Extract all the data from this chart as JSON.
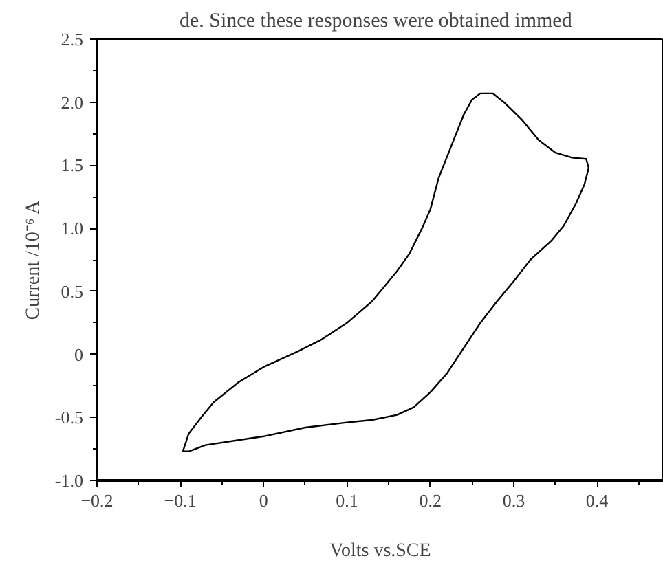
{
  "chart_data": {
    "type": "line",
    "xlabel": "Volts vs.SCE",
    "ylabel": "Current /10⁻⁶ A",
    "annotations": [
      "de. Since these responses were obtained immed"
    ],
    "xlim": [
      -0.2,
      0.48
    ],
    "ylim": [
      -1.0,
      2.5
    ],
    "xticks": [
      -0.2,
      -0.1,
      0,
      0.1,
      0.2,
      0.3,
      0.4
    ],
    "yticks": [
      {
        "value": -1.0,
        "label": "-1.0"
      },
      {
        "value": -0.5,
        "label": "-0.5"
      },
      0,
      {
        "value": 0.5,
        "label": "0.5"
      },
      {
        "value": 1.0,
        "label": "1.0"
      },
      {
        "value": 1.5,
        "label": "1.5"
      },
      {
        "value": 2.0,
        "label": "2.0"
      },
      {
        "value": 2.5,
        "label": "2.5"
      }
    ],
    "grid": false,
    "marker": "none",
    "line_style": "solid",
    "series": [
      {
        "color": "#000000",
        "x": [
          -0.097,
          -0.09,
          -0.07,
          -0.03,
          0,
          0.05,
          0.1,
          0.13,
          0.16,
          0.18,
          0.2,
          0.22,
          0.24,
          0.26,
          0.28,
          0.3,
          0.32,
          0.345,
          0.36,
          0.375,
          0.385,
          0.39
        ],
        "values": [
          -0.77,
          -0.77,
          -0.72,
          -0.68,
          -0.65,
          -0.58,
          -0.54,
          -0.52,
          -0.48,
          -0.42,
          -0.3,
          -0.15,
          0.05,
          0.25,
          0.42,
          0.58,
          0.75,
          0.9,
          1.02,
          1.2,
          1.35,
          1.48
        ]
      },
      {
        "color": "#000000",
        "x": [
          0.39,
          0.387,
          0.37,
          0.35,
          0.33,
          0.31,
          0.29,
          0.275,
          0.26,
          0.25,
          0.24,
          0.225,
          0.21,
          0.2,
          0.19,
          0.175,
          0.16,
          0.15,
          0.13,
          0.1,
          0.07,
          0.04,
          0,
          -0.03,
          -0.06,
          -0.075,
          -0.09,
          -0.097
        ],
        "values": [
          1.48,
          1.55,
          1.56,
          1.6,
          1.7,
          1.86,
          1.99,
          2.07,
          2.07,
          2.02,
          1.9,
          1.65,
          1.4,
          1.15,
          1.0,
          0.8,
          0.66,
          0.58,
          0.42,
          0.25,
          0.12,
          0.02,
          -0.1,
          -0.22,
          -0.38,
          -0.5,
          -0.63,
          -0.77
        ]
      }
    ]
  }
}
